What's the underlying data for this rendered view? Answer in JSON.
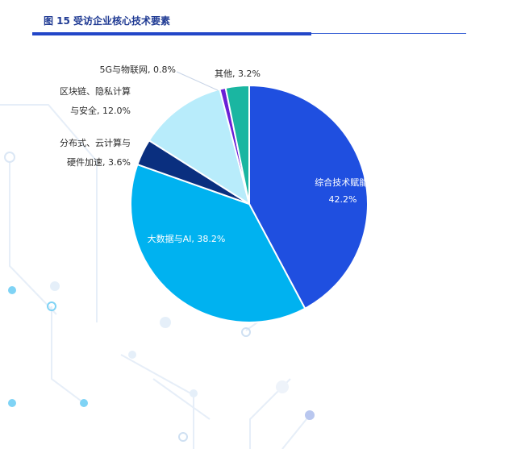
{
  "figure": {
    "title": "图 15 受访企业核心技术要素"
  },
  "chart_data": {
    "type": "pie",
    "title": "图 15 受访企业核心技术要素",
    "slices": [
      {
        "name": "综合技术赋能",
        "label_lines": [
          "综合技术赋能,",
          "42.2%"
        ],
        "value": 42.2,
        "color": "#1f4fe0",
        "label_pos": "inside"
      },
      {
        "name": "大数据与AI",
        "label_lines": [
          "大数据与AI, 38.2%"
        ],
        "value": 38.2,
        "color": "#00b2f0",
        "label_pos": "inside"
      },
      {
        "name": "分布式、云计算与硬件加速",
        "label_lines": [
          "分布式、云计算与",
          "硬件加速, 3.6%"
        ],
        "value": 3.6,
        "color": "#0a2f7f",
        "label_pos": "outside"
      },
      {
        "name": "区块链、隐私计算与安全",
        "label_lines": [
          "区块链、隐私计算",
          "与安全, 12.0%"
        ],
        "value": 12.0,
        "color": "#b8ecfb",
        "label_pos": "outside"
      },
      {
        "name": "5G与物联网",
        "label_lines": [
          "5G与物联网, 0.8%"
        ],
        "value": 0.8,
        "color": "#6a1fd6",
        "label_pos": "outside"
      },
      {
        "name": "其他",
        "label_lines": [
          "其他, 3.2%"
        ],
        "value": 3.2,
        "color": "#1ab6a1",
        "label_pos": "outside"
      }
    ]
  }
}
